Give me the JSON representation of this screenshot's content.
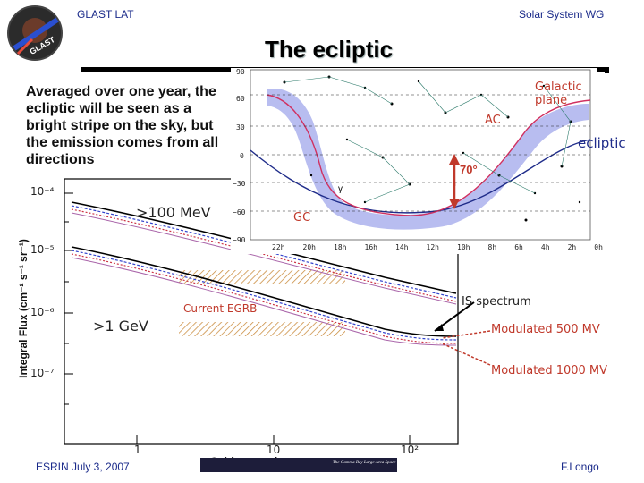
{
  "header": {
    "left": "GLAST LAT",
    "right": "Solar System WG",
    "title": "The ecliptic",
    "logo_text": "GLAST"
  },
  "bullet": "Averaged over one year, the ecliptic will be seen as a bright stripe on the sky, but the emission comes from all directions",
  "sky_map": {
    "galactic_plane": "Galactic plane",
    "ac": "AC",
    "ecliptic": "ecliptic",
    "gc": "GC",
    "angle": "70°",
    "gamma": "γ",
    "dec_ticks": [
      "90",
      "60",
      "30",
      "0",
      "−30",
      "−60",
      "−90"
    ],
    "ra_ticks": [
      "22h",
      "20h",
      "18h",
      "16h",
      "14h",
      "12h",
      "10h",
      "8h",
      "6h",
      "4h",
      "2h",
      "0h"
    ]
  },
  "plot": {
    "ylabel": "Integral Flux (cm⁻² s⁻¹ sr⁻¹)",
    "xlabel": "Θ (degrees)",
    "y_ticks": [
      "10⁻⁴",
      "10⁻⁵",
      "10⁻⁶",
      "10⁻⁷"
    ],
    "x_ticks": [
      "1",
      "10",
      "10²"
    ],
    "energy_high": ">100 MeV",
    "energy_low": ">1 GeV",
    "current_egrb": "Current EGRB",
    "is_spectrum": "IS spectrum",
    "mod500": "Modulated 500 MV",
    "mod1000": "Modulated 1000 MV"
  },
  "footer": {
    "left": "ESRIN July 3, 2007",
    "logo_caption": "The Gamma Ray Large Area Space Telescope",
    "right": "F.Longo"
  },
  "colors": {
    "header_blue": "#1a2a8a",
    "label_red": "#c0392b",
    "milky_way": "#b8bdf0",
    "plot_bg": "#ffffff"
  }
}
